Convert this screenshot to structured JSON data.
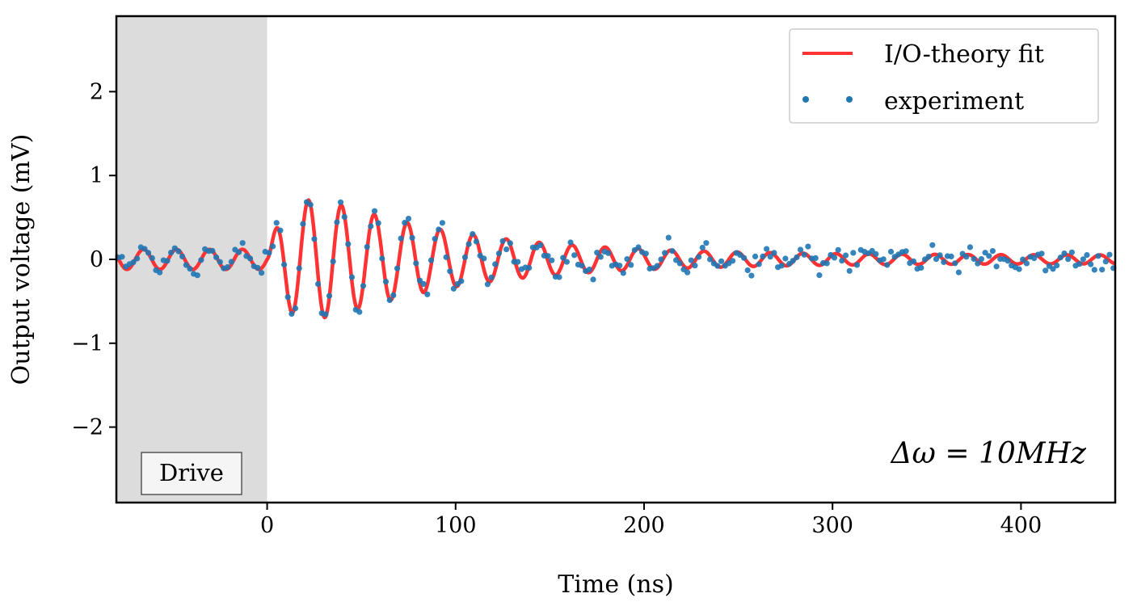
{
  "chart_data": {
    "type": "line",
    "title": "",
    "xlabel": "Time (ns)",
    "ylabel": "Output voltage (mV)",
    "xlim": [
      -80,
      450
    ],
    "ylim": [
      -2.9,
      2.9
    ],
    "xticks": [
      0,
      100,
      200,
      300,
      400
    ],
    "yticks": [
      -2,
      -1,
      0,
      1,
      2
    ],
    "ytick_labels": [
      "−2",
      "−1",
      "0",
      "1",
      "2"
    ],
    "grid": false,
    "legend_position": "top-right",
    "shaded_region": {
      "x0": -80,
      "x1": 0,
      "label": "Drive",
      "color": "#dcdcdc"
    },
    "annotation": "Δω = 10MHz",
    "series": [
      {
        "name": "I/O-theory fit",
        "kind": "line",
        "color": "#ff3333",
        "pre_drive": {
          "amplitude": 0.12,
          "period_ns": 17.5
        },
        "ringdown": {
          "amplitude": 1.05,
          "period_ns": 17.5,
          "rise_ns": 12,
          "decay_ns": 75,
          "floor": 0.05
        }
      },
      {
        "name": "experiment",
        "kind": "scatter",
        "color": "#1f77b4",
        "sample_spacing_ns": 2.0,
        "noise_mV": 0.06
      }
    ]
  }
}
